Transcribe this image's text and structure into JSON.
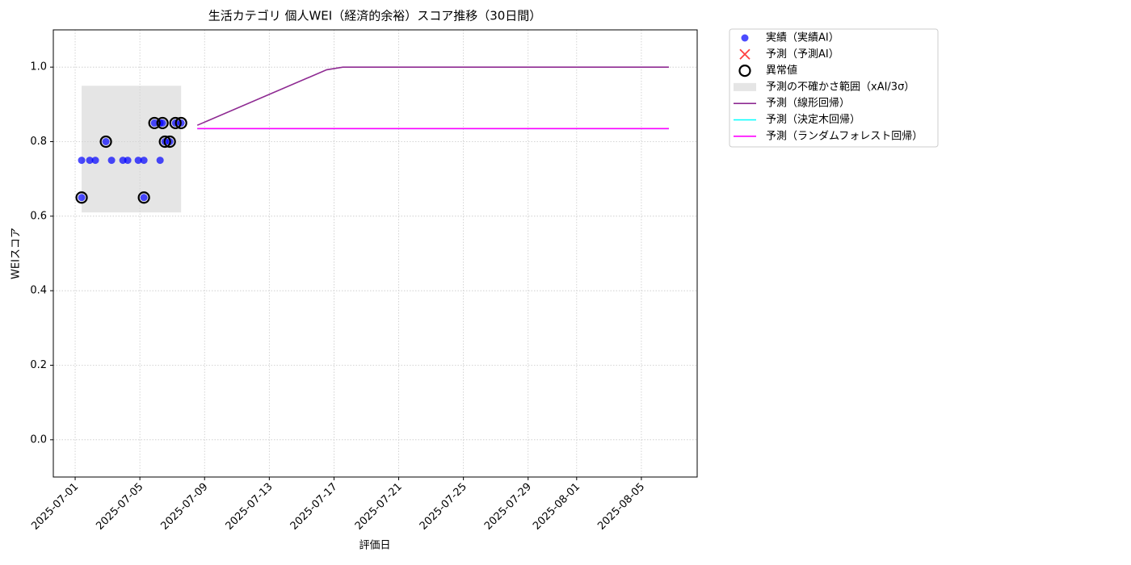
{
  "chart_data": {
    "type": "line",
    "title": "生活カテゴリ 個人WEI（経済的余裕）スコア推移（30日間）",
    "x_label": "評価日",
    "y_label": "WEIスコア",
    "xlim": [
      "2025-06-29T15:36",
      "2025-08-08T10:48"
    ],
    "xticks": [
      "2025-07-01",
      "2025-07-05",
      "2025-07-09",
      "2025-07-13",
      "2025-07-17",
      "2025-07-21",
      "2025-07-25",
      "2025-07-29",
      "2025-08-01",
      "2025-08-05"
    ],
    "ylim": [
      -0.1,
      1.1
    ],
    "yticks": [
      {
        "value": 0,
        "label": "0.0"
      },
      0.2,
      0.4,
      0.6,
      0.8,
      {
        "value": 1,
        "label": "1.0"
      }
    ],
    "grid": true,
    "legend": "outside upper left",
    "series": [
      {
        "name": "実績（実績AI）",
        "style": "scatter",
        "color": "#0000ff",
        "x": [
          "2025-07-01T09:36",
          "2025-07-01T09:36",
          "2025-07-01T21:36",
          "2025-07-02T06:00",
          "2025-07-02T21:36",
          "2025-07-03T06:00",
          "2025-07-03T22:48",
          "2025-07-04T06:00",
          "2025-07-04T21:36",
          "2025-07-05T06:00",
          "2025-07-05T06:00",
          "2025-07-05T21:36",
          "2025-07-06T06:00",
          "2025-07-06T06:00",
          "2025-07-06T09:36",
          "2025-07-06T13:12",
          "2025-07-06T20:24",
          "2025-07-07T04:48",
          "2025-07-07T13:12"
        ],
        "values": [
          0.75,
          0.65,
          0.75,
          0.75,
          0.8,
          0.75,
          0.75,
          0.75,
          0.75,
          0.75,
          0.65,
          0.85,
          0.75,
          0.85,
          0.85,
          0.8,
          0.8,
          0.85,
          0.85
        ]
      },
      {
        "name": "予測（予測AI）",
        "style": "cross",
        "color": "#ff0000",
        "x": [],
        "values": []
      },
      {
        "name": "異常値",
        "style": "anomaly",
        "color": "#000000",
        "x": [
          "2025-07-01T09:36",
          "2025-07-02T21:36",
          "2025-07-05T06:00",
          "2025-07-05T21:36",
          "2025-07-06T09:36",
          "2025-07-06T13:12",
          "2025-07-06T20:24",
          "2025-07-07T04:48",
          "2025-07-07T13:12"
        ],
        "values": [
          0.65,
          0.8,
          0.65,
          0.85,
          0.85,
          0.8,
          0.8,
          0.85,
          0.85
        ]
      },
      {
        "name": "予測の不確かさ範囲（xAI/3σ）",
        "style": "band",
        "color": "#d3d3d3",
        "x": [
          "2025-07-01T09:36",
          "2025-07-07T13:12"
        ],
        "low": [
          0.61,
          0.61
        ],
        "high": [
          0.95,
          0.95
        ]
      },
      {
        "name": "予測（線形回帰）",
        "style": "line",
        "color": "#8e2a92",
        "x": [
          "2025-07-08T13:12",
          "2025-07-16T13:12",
          "2025-07-17T13:12",
          "2025-08-06T16:48"
        ],
        "values": [
          0.844,
          0.993,
          1.0,
          1.0
        ]
      },
      {
        "name": "予測（決定木回帰）",
        "style": "line",
        "color": "#00ffff",
        "x": [
          "2025-07-08T13:12",
          "2025-08-06T16:48"
        ],
        "values": [
          0.835,
          0.835
        ]
      },
      {
        "name": "予測（ランダムフォレスト回帰）",
        "style": "line",
        "color": "#ff00ff",
        "x": [
          "2025-07-08T13:12",
          "2025-08-06T16:48"
        ],
        "values": [
          0.835,
          0.835
        ]
      }
    ]
  }
}
